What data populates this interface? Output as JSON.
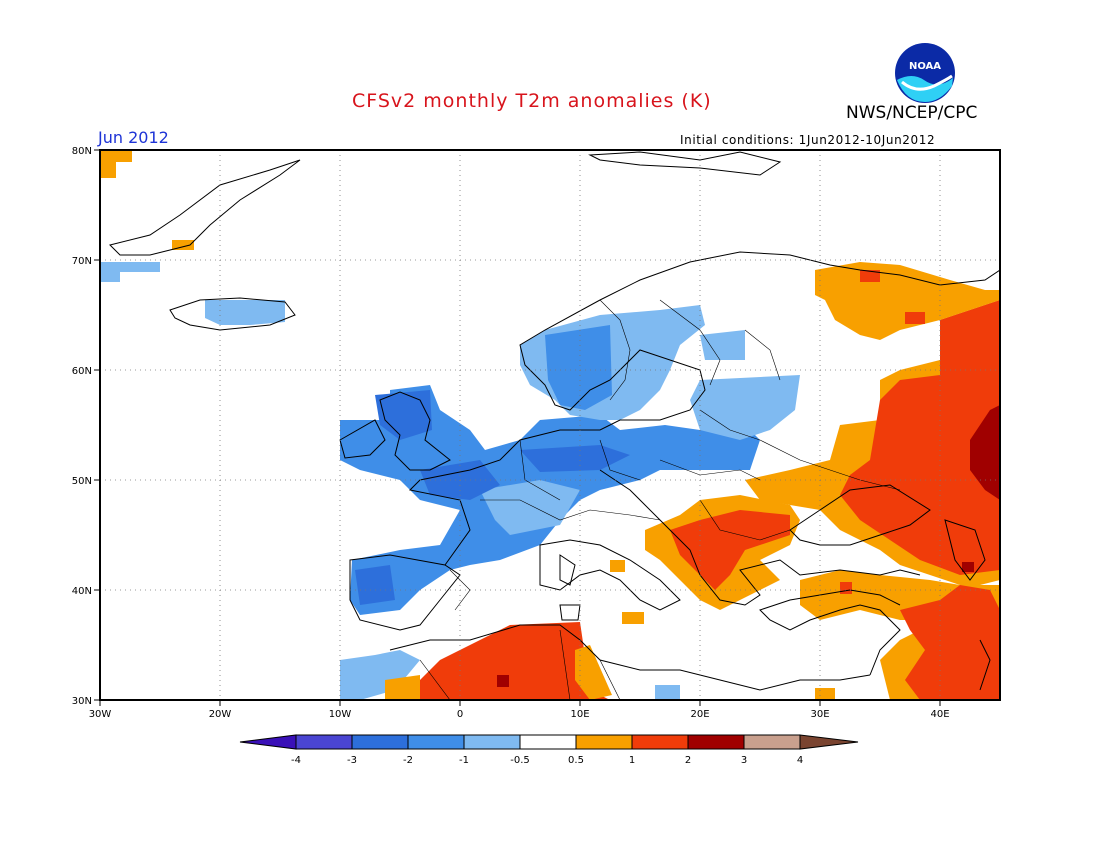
{
  "title": "CFSv2 monthly T2m anomalies (K)",
  "agency": "NWS/NCEP/CPC",
  "logo_text": "NOAA",
  "month": "Jun 2012",
  "initial_conditions": "Initial conditions: 1Jun2012-10Jun2012",
  "axes": {
    "lon_range": [
      -30,
      45
    ],
    "lat_range": [
      30,
      80
    ],
    "lon_ticks": [
      {
        "value": -30,
        "label": "30W"
      },
      {
        "value": -20,
        "label": "20W"
      },
      {
        "value": -10,
        "label": "10W"
      },
      {
        "value": 0,
        "label": "0"
      },
      {
        "value": 10,
        "label": "10E"
      },
      {
        "value": 20,
        "label": "20E"
      },
      {
        "value": 30,
        "label": "30E"
      },
      {
        "value": 40,
        "label": "40E"
      }
    ],
    "lat_ticks": [
      {
        "value": 30,
        "label": "30N"
      },
      {
        "value": 40,
        "label": "40N"
      },
      {
        "value": 50,
        "label": "50N"
      },
      {
        "value": 60,
        "label": "60N"
      },
      {
        "value": 70,
        "label": "70N"
      },
      {
        "value": 80,
        "label": "80N"
      }
    ],
    "grid": true
  },
  "colorbar": {
    "colors": [
      "#3a10b8",
      "#4a45d2",
      "#2d6fdb",
      "#3f8ee8",
      "#7fbaf1",
      "#ffffff",
      "#f8a000",
      "#f03c0a",
      "#a00000",
      "#c9a08e",
      "#7a4430"
    ],
    "labels": [
      "-4",
      "-3",
      "-2",
      "-1",
      "-0.5",
      "0.5",
      "1",
      "2",
      "3",
      "4"
    ]
  },
  "chart_data": {
    "type": "heatmap",
    "title": "CFSv2 monthly T2m anomalies (K)",
    "units": "K",
    "region": {
      "lon": [
        -30,
        45
      ],
      "lat": [
        30,
        80
      ]
    },
    "anomaly_regions": [
      {
        "area": "Iceland",
        "class": "-1 to -0.5"
      },
      {
        "area": "Iberian Peninsula",
        "class": "-2 to -1"
      },
      {
        "area": "France",
        "class": "-2 to -1"
      },
      {
        "area": "British Isles",
        "class": "-2 to -1"
      },
      {
        "area": "Scandinavia",
        "class": "-1 to -0.5"
      },
      {
        "area": "Germany and Poland",
        "class": "-2 to -1"
      },
      {
        "area": "Baltic states",
        "class": "-1 to -0.5"
      },
      {
        "area": "North Africa (Algeria/Tunisia)",
        "class": "1 to 2"
      },
      {
        "area": "Balkans",
        "class": "1 to 2"
      },
      {
        "area": "Ukraine",
        "class": "0.5 to 1"
      },
      {
        "area": "Western Russia",
        "class": "1 to 2"
      },
      {
        "area": "Central Russia near 45E, 50-55N",
        "class": "2 to 3"
      },
      {
        "area": "Northwest Russia / Kola",
        "class": "0.5 to 1"
      },
      {
        "area": "Turkey",
        "class": "0.5 to 1"
      },
      {
        "area": "Middle East",
        "class": "1 to 2"
      },
      {
        "area": "Svalbard region (far NW)",
        "class": "0.5 to 1"
      }
    ]
  }
}
